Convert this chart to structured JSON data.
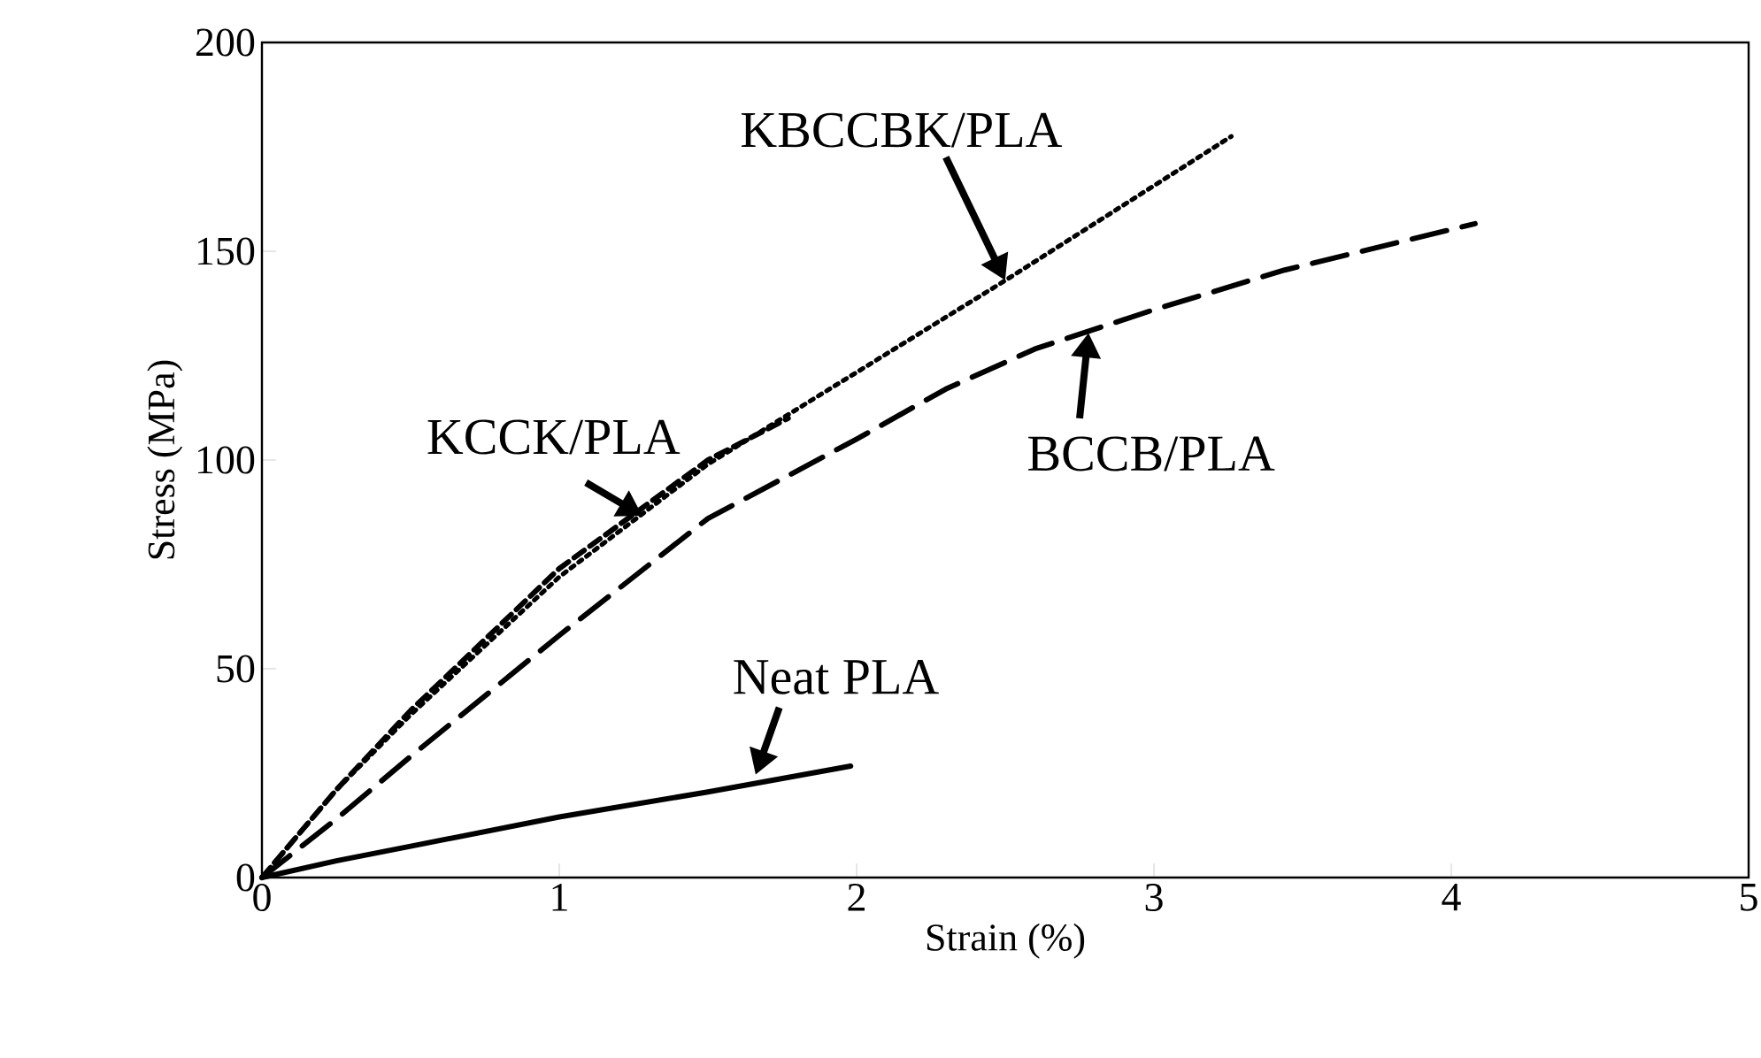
{
  "chart_data": {
    "type": "line",
    "xlabel": "Strain (%)",
    "ylabel": "Stress (MPa)",
    "xlim": [
      0,
      5
    ],
    "xticks": [
      0,
      1,
      2,
      3,
      4,
      5
    ],
    "ylim": [
      0,
      200
    ],
    "yticks": [
      0,
      50,
      100,
      150,
      200
    ],
    "grid": false,
    "marker": "none",
    "annotations": [
      {
        "text": "KBCCBK/PLA",
        "x": 2.5,
        "y": 143
      },
      {
        "text": "KCCK/PLA",
        "x": 1.28,
        "y": 86.6
      },
      {
        "text": "BCCB/PLA",
        "x": 2.78,
        "y": 130.5
      },
      {
        "text": "Neat PLA",
        "x": 1.66,
        "y": 24.6
      }
    ],
    "series": [
      {
        "color": "#000000",
        "line_style": "dotted",
        "x": [
          0,
          0.25,
          0.5,
          1,
          1.5,
          2,
          2.5,
          3.26
        ],
        "values": [
          0,
          21,
          39,
          72,
          99,
          121,
          143,
          177.5
        ]
      },
      {
        "color": "#000000",
        "line_style": "dashed",
        "x": [
          0,
          0.25,
          0.5,
          1,
          1.5,
          1.77
        ],
        "values": [
          0,
          21,
          40,
          74,
          100,
          110
        ]
      },
      {
        "color": "#000000",
        "line_style": "dashed",
        "x": [
          0,
          0.25,
          0.5,
          1,
          1.5,
          2,
          2.3,
          2.6,
          3,
          3.44,
          4.08
        ],
        "values": [
          0,
          14,
          29,
          58,
          86,
          105,
          117,
          126.6,
          136,
          145.5,
          156.6
        ]
      },
      {
        "color": "#000000",
        "line_style": "solid",
        "x": [
          0,
          0.25,
          0.5,
          1,
          1.5,
          1.98
        ],
        "values": [
          0,
          4,
          7.5,
          14.5,
          20.5,
          26.7
        ]
      }
    ]
  }
}
